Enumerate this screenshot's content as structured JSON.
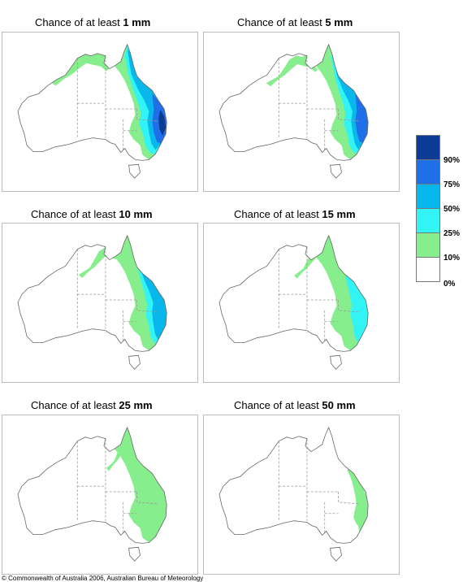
{
  "panels": [
    {
      "title_prefix": "Chance of at least ",
      "amount": "1 mm",
      "intensity": 6
    },
    {
      "title_prefix": "Chance of at least ",
      "amount": "5 mm",
      "intensity": 5
    },
    {
      "title_prefix": "Chance of at least ",
      "amount": "10 mm",
      "intensity": 4
    },
    {
      "title_prefix": "Chance of at least ",
      "amount": "15 mm",
      "intensity": 3
    },
    {
      "title_prefix": "Chance of at least ",
      "amount": "25 mm",
      "intensity": 2
    },
    {
      "title_prefix": "Chance of at least ",
      "amount": "50 mm",
      "intensity": 1
    }
  ],
  "legend": {
    "labels": [
      "90%",
      "75%",
      "50%",
      "25%",
      "10%",
      "0%"
    ],
    "colors": [
      "#0a3c96",
      "#1f70e8",
      "#08b8ec",
      "#33f4f4",
      "#86ee8c",
      "#ffffff"
    ]
  },
  "copyright": "© Commonwealth of Australia 2006, Australian Bureau of Meteorology"
}
